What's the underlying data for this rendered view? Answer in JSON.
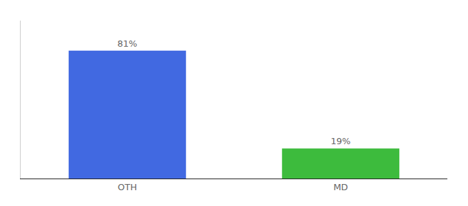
{
  "chart_data": {
    "type": "bar",
    "categories": [
      "OTH",
      "MD"
    ],
    "values": [
      81,
      19
    ],
    "value_labels": [
      "81%",
      "19%"
    ],
    "colors": [
      "#4169e1",
      "#3dbb3d"
    ],
    "ylim": [
      0,
      100
    ],
    "data_labels": true,
    "tick_labels": "x",
    "grid": false
  }
}
